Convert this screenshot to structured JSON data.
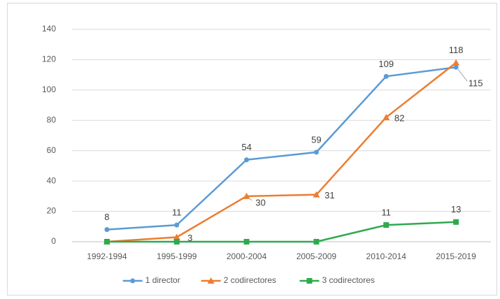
{
  "chart_data": {
    "type": "line",
    "categories": [
      "1992-1994",
      "1995-1999",
      "2000-2004",
      "2005-2009",
      "2010-2014",
      "2015-2019"
    ],
    "series": [
      {
        "name": "1 director",
        "color": "#5b9bd5",
        "marker": "circle",
        "values": [
          8,
          11,
          54,
          59,
          109,
          115
        ],
        "value_labels": [
          "8",
          "11",
          "54",
          "59",
          "109",
          "115"
        ]
      },
      {
        "name": "2 codirectores",
        "color": "#ed7d31",
        "marker": "triangle",
        "values": [
          0,
          3,
          30,
          31,
          82,
          118
        ],
        "value_labels": [
          null,
          "3",
          "30",
          "31",
          "82",
          "118"
        ]
      },
      {
        "name": "3 codirectores",
        "color": "#2eaa4e",
        "marker": "square",
        "values": [
          0,
          0,
          0,
          0,
          11,
          13
        ],
        "value_labels": [
          null,
          null,
          null,
          null,
          "11",
          "13"
        ]
      }
    ],
    "ylim": [
      0,
      140
    ],
    "yticks": [
      0,
      20,
      40,
      60,
      80,
      100,
      120,
      140
    ],
    "grid": true,
    "legend": "bottom"
  }
}
